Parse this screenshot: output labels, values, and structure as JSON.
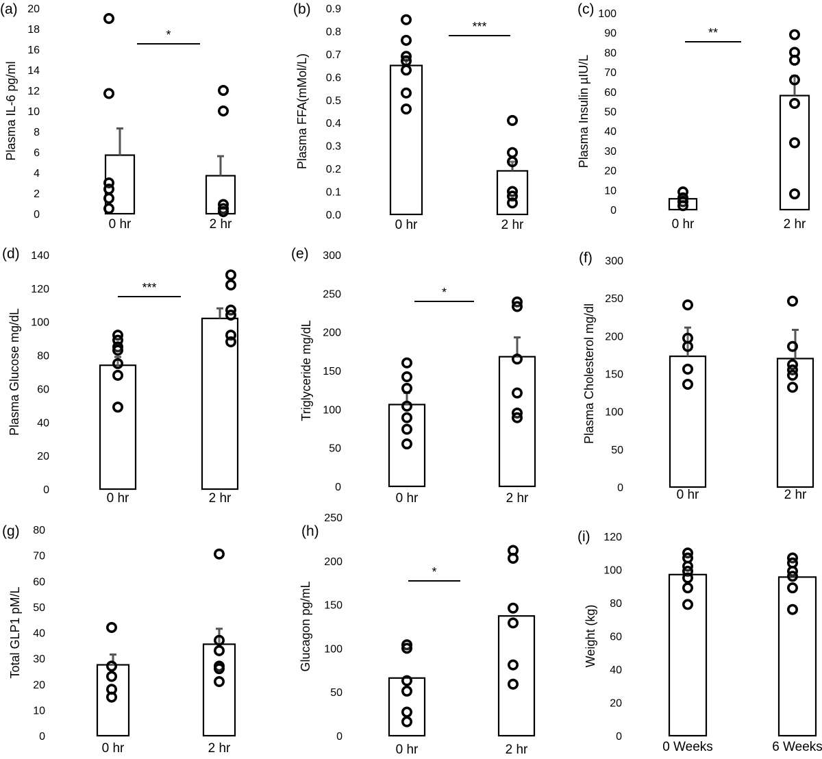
{
  "chart_data": [
    {
      "type": "bar",
      "panel": "(a)",
      "ylabel": "Plasma IL-6  pg/ml",
      "ylim": [
        0,
        20
      ],
      "yticks": [
        0,
        2,
        4,
        6,
        8,
        10,
        12,
        14,
        16,
        18,
        20
      ],
      "categories": [
        "0 hr",
        "2 hr"
      ],
      "values": [
        5.7,
        3.7
      ],
      "errors": [
        2.6,
        1.9
      ],
      "points": [
        [
          19,
          11.7,
          3,
          2.4,
          1.5,
          0.5
        ],
        [
          12,
          10,
          0.9,
          0.5,
          0.2
        ]
      ],
      "significance": "*"
    },
    {
      "type": "bar",
      "panel": "(b)",
      "ylabel": "Plasma FFA(mMol/L)",
      "ylim": [
        0,
        0.9
      ],
      "yticks": [
        "0.0",
        "0.1",
        "0.2",
        "0.3",
        "0.4",
        "0.5",
        "0.6",
        "0.7",
        "0.8",
        "0.9"
      ],
      "categories": [
        "0 hr",
        "2 hr"
      ],
      "values": [
        0.65,
        0.19
      ],
      "errors": [
        0.04,
        0.04
      ],
      "points": [
        [
          0.85,
          0.76,
          0.69,
          0.67,
          0.63,
          0.53,
          0.46
        ],
        [
          0.41,
          0.27,
          0.23,
          0.1,
          0.08,
          0.05
        ]
      ],
      "significance": "***"
    },
    {
      "type": "bar",
      "panel": "(c)",
      "ylabel": "Plasma Insulin µIU/L",
      "ylim": [
        0,
        100
      ],
      "yticks": [
        0,
        10,
        20,
        30,
        40,
        50,
        60,
        70,
        80,
        90,
        100
      ],
      "categories": [
        "0 hr",
        "2 hr"
      ],
      "values": [
        5.5,
        58
      ],
      "errors": [
        1.5,
        10
      ],
      "points": [
        [
          9,
          6,
          4,
          2
        ],
        [
          89,
          80,
          76,
          66,
          54,
          34,
          8
        ]
      ],
      "significance": "**"
    },
    {
      "type": "bar",
      "panel": "(d)",
      "ylabel": "Plasma Glucose mg/dL",
      "ylim": [
        0,
        140
      ],
      "yticks": [
        0,
        20,
        40,
        60,
        80,
        100,
        120,
        140
      ],
      "categories": [
        "0 hr",
        "2 hr"
      ],
      "values": [
        74,
        102
      ],
      "errors": [
        5,
        6
      ],
      "points": [
        [
          92,
          89,
          85,
          83,
          75,
          68,
          49
        ],
        [
          128,
          122,
          107,
          104,
          92,
          88
        ]
      ],
      "significance": "***"
    },
    {
      "type": "bar",
      "panel": "(e)",
      "ylabel": "Triglyceride mg/dL",
      "ylim": [
        0,
        300
      ],
      "yticks": [
        0,
        50,
        100,
        150,
        200,
        250,
        300
      ],
      "categories": [
        "0 hr",
        "2 hr"
      ],
      "values": [
        106,
        168
      ],
      "errors": [
        15,
        25
      ],
      "points": [
        [
          160,
          142,
          127,
          104,
          89,
          74,
          55
        ],
        [
          239,
          233,
          165,
          121,
          95,
          89
        ]
      ],
      "significance": "*"
    },
    {
      "type": "bar",
      "panel": "(f)",
      "ylabel": "Plasma Cholesterol  mg/dl",
      "ylim": [
        0,
        300
      ],
      "yticks": [
        0,
        50,
        100,
        150,
        200,
        250,
        300
      ],
      "categories": [
        "0 hr",
        "2 hr"
      ],
      "values": [
        173,
        170
      ],
      "errors": [
        38,
        38
      ],
      "points": [
        [
          241,
          197,
          186,
          156,
          136
        ],
        [
          246,
          186,
          162,
          155,
          148,
          132
        ]
      ],
      "significance": ""
    },
    {
      "type": "bar",
      "panel": "(g)",
      "ylabel": "Total GLP1  pM/L",
      "ylim": [
        0,
        80
      ],
      "yticks": [
        0,
        10,
        20,
        30,
        40,
        50,
        60,
        70,
        80
      ],
      "categories": [
        "0 hr",
        "2 hr"
      ],
      "values": [
        27.5,
        35.5
      ],
      "errors": [
        4,
        6
      ],
      "points": [
        [
          42,
          27,
          23,
          18,
          15
        ],
        [
          70.5,
          37,
          33,
          27,
          26,
          21
        ]
      ],
      "significance": ""
    },
    {
      "type": "bar",
      "panel": "(h)",
      "ylabel": "Glucagon pg/mL",
      "ylim": [
        0,
        250
      ],
      "yticks": [
        0,
        50,
        100,
        150,
        200,
        250
      ],
      "categories": [
        "0 hr",
        "2 hr"
      ],
      "values": [
        66,
        137
      ],
      "errors": [
        0,
        0
      ],
      "points": [
        [
          104,
          100,
          63,
          51,
          27,
          16
        ],
        [
          212,
          203,
          146,
          129,
          81,
          59
        ]
      ],
      "significance": "*"
    },
    {
      "type": "bar",
      "panel": "(i)",
      "ylabel": "Weight (kg)",
      "ylim": [
        0,
        120
      ],
      "yticks": [
        0,
        20,
        40,
        60,
        80,
        100,
        120
      ],
      "categories": [
        "0 Weeks",
        "6 Weeks"
      ],
      "values": [
        97,
        95.5
      ],
      "errors": [
        0,
        0
      ],
      "points": [
        [
          110,
          107,
          102,
          99,
          95,
          89,
          79
        ],
        [
          107,
          104,
          99,
          96,
          89,
          76
        ]
      ],
      "significance": ""
    }
  ]
}
